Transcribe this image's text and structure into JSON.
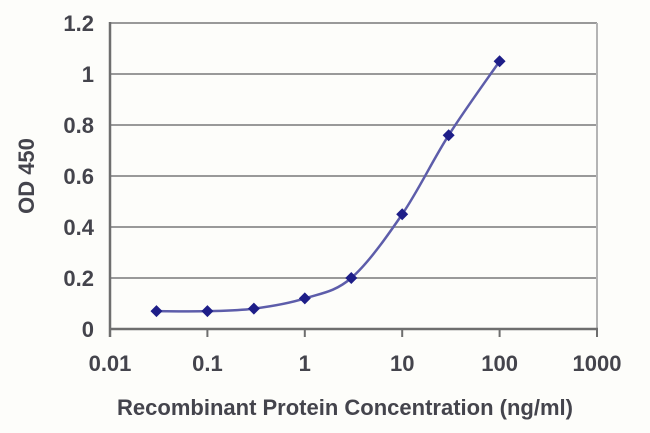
{
  "chart_data": {
    "type": "line",
    "title": "",
    "xlabel": "Recombinant Protein Concentration (ng/ml)",
    "ylabel": "OD 450",
    "xscale": "log",
    "xlim": [
      0.01,
      1000
    ],
    "ylim": [
      0,
      1.2
    ],
    "x_tick_labels": [
      "0.01",
      "0.1",
      "1",
      "10",
      "100",
      "1000"
    ],
    "y_tick_labels": [
      "0",
      "0.2",
      "0.4",
      "0.6",
      "0.8",
      "1",
      "1.2"
    ],
    "grid": "horizontal",
    "legend": false,
    "series": [
      {
        "name": "OD 450",
        "marker": "diamond",
        "x": [
          0.03,
          0.1,
          0.3,
          1,
          3,
          10,
          30,
          100
        ],
        "y": [
          0.07,
          0.07,
          0.08,
          0.12,
          0.2,
          0.45,
          0.76,
          1.05
        ]
      }
    ],
    "colors": {
      "line": "#5d5daa",
      "marker": "#1e1e88",
      "grid": "#999999",
      "axis": "#6e6e6e",
      "border": "#b4b4b4",
      "text": "#44444c",
      "background": "#fdfdfa"
    }
  }
}
